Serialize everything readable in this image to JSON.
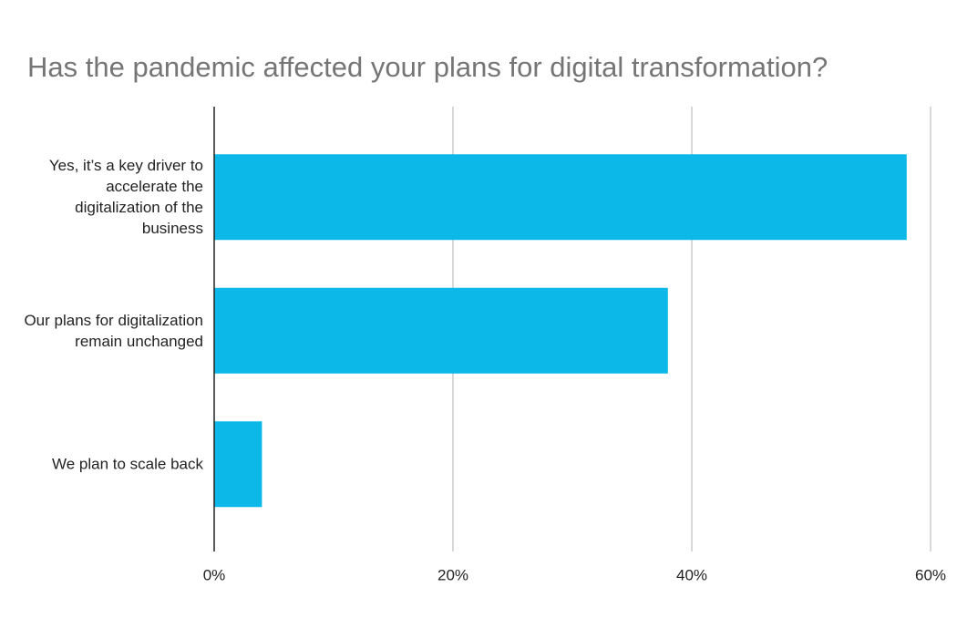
{
  "chart_data": {
    "type": "bar",
    "orientation": "horizontal",
    "title": "Has the pandemic affected your plans for digital transformation?",
    "categories": [
      "Yes, it’s a key driver to accelerate the digitalization of the business",
      "Our plans for digitalization remain unchanged",
      "We plan to scale back"
    ],
    "values": [
      58,
      38,
      4
    ],
    "color": "#0bb8e8",
    "xlim": [
      0,
      60
    ],
    "xticks": [
      {
        "value": 0,
        "label": "0%"
      },
      {
        "value": 20,
        "label": "20%"
      },
      {
        "value": 40,
        "label": "40%"
      },
      {
        "value": 60,
        "label": "60%"
      }
    ],
    "grid": true
  }
}
